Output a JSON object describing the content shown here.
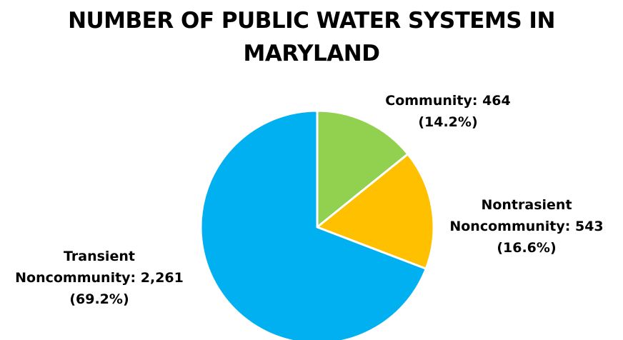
{
  "chart_data": {
    "type": "pie",
    "title_lines": [
      "NUMBER OF PUBLIC WATER SYSTEMS IN",
      "MARYLAND"
    ],
    "slices": [
      {
        "name": "Community",
        "value": 464,
        "percent": "14.2%",
        "color": "#92d050",
        "label_lines": [
          "Community: 464",
          "(14.2%)"
        ]
      },
      {
        "name": "Nontrasient Noncommunity",
        "value": 543,
        "percent": "16.6%",
        "color": "#ffc000",
        "label_lines": [
          "Nontrasient",
          "Noncommunity: 543",
          "(16.6%)"
        ]
      },
      {
        "name": "Transient Noncommunity",
        "value": 2261,
        "percent": "69.2%",
        "color": "#00b0f0",
        "label_lines": [
          "Transient",
          "Noncommunity: 2,261",
          "(69.2%)"
        ]
      }
    ],
    "start_angle": "12 o'clock",
    "direction": "clockwise",
    "legend": "none",
    "slice_border_color": "#ffffff"
  }
}
